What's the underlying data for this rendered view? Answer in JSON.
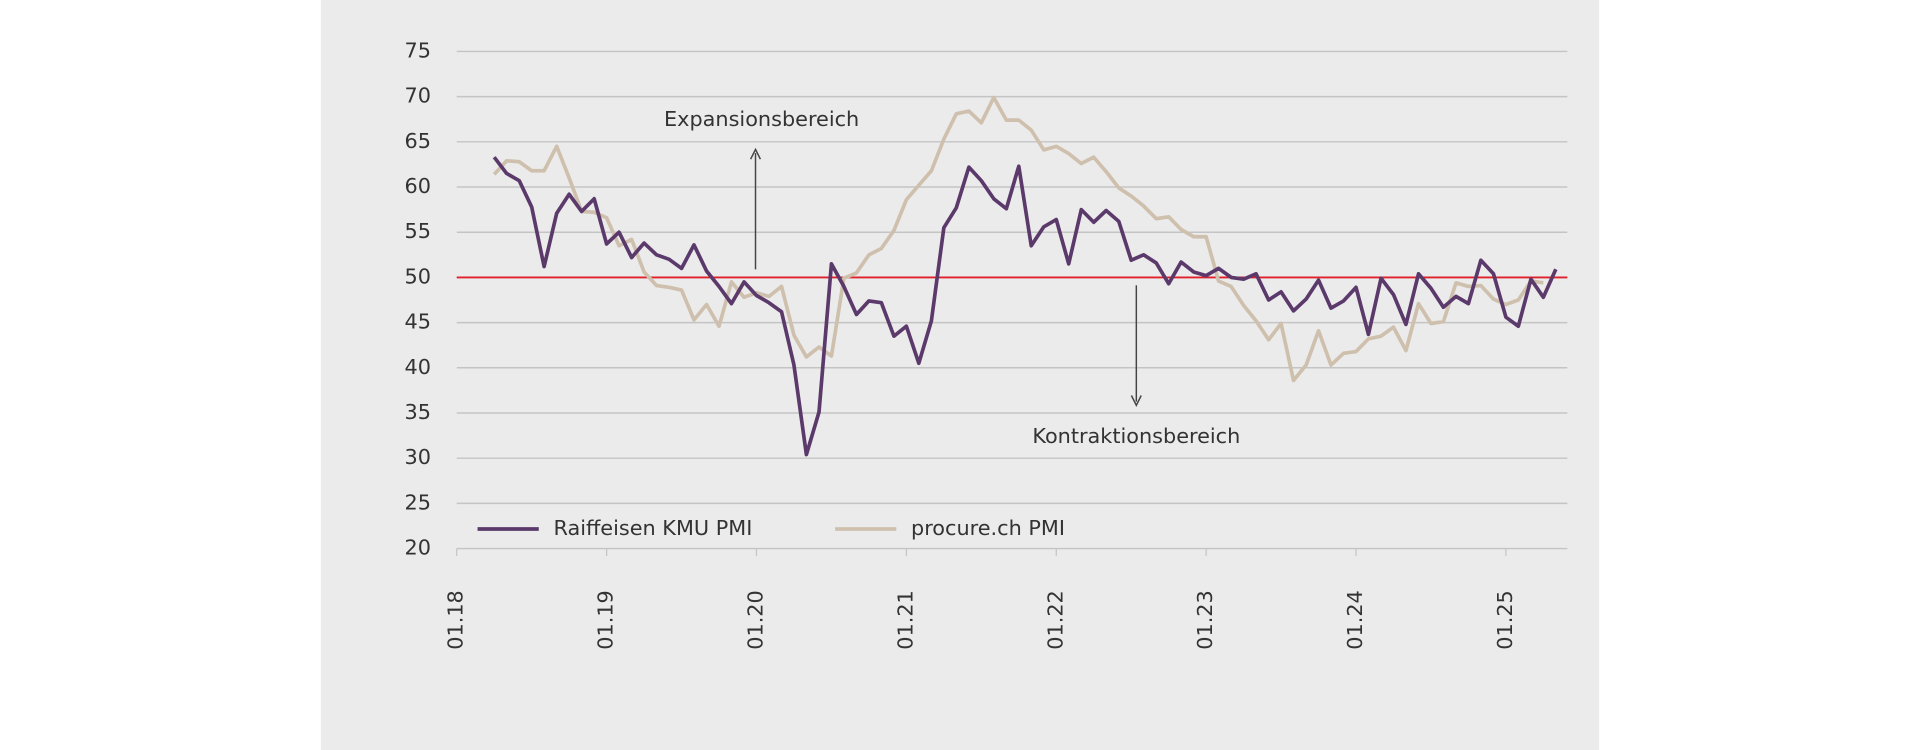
{
  "chart_data": {
    "type": "line",
    "x": [
      2018.25,
      2018.333,
      2018.417,
      2018.5,
      2018.583,
      2018.667,
      2018.75,
      2018.833,
      2018.917,
      2019.0,
      2019.083,
      2019.167,
      2019.25,
      2019.333,
      2019.417,
      2019.5,
      2019.583,
      2019.667,
      2019.75,
      2019.833,
      2019.917,
      2020.0,
      2020.083,
      2020.167,
      2020.25,
      2020.333,
      2020.417,
      2020.5,
      2020.583,
      2020.667,
      2020.75,
      2020.833,
      2020.917,
      2021.0,
      2021.083,
      2021.167,
      2021.25,
      2021.333,
      2021.417,
      2021.5,
      2021.583,
      2021.667,
      2021.75,
      2021.833,
      2021.917,
      2022.0,
      2022.083,
      2022.167,
      2022.25,
      2022.333,
      2022.417,
      2022.5,
      2022.583,
      2022.667,
      2022.75,
      2022.833,
      2022.917,
      2023.0,
      2023.083,
      2023.167,
      2023.25,
      2023.333,
      2023.417,
      2023.5,
      2023.583,
      2023.667,
      2023.75,
      2023.833,
      2023.917,
      2024.0,
      2024.083,
      2024.167,
      2024.25,
      2024.333,
      2024.417,
      2024.5,
      2024.583,
      2024.667,
      2024.75,
      2024.833,
      2024.917,
      2025.0,
      2025.083,
      2025.167,
      2025.25,
      2025.333
    ],
    "series": [
      {
        "name": "Raiffeisen KMU PMI",
        "color": "#5b3a6b",
        "values": [
          63.3,
          61.5,
          60.7,
          57.8,
          51.2,
          57.1,
          59.2,
          57.3,
          58.7,
          53.7,
          55.0,
          52.2,
          53.8,
          52.5,
          52.0,
          51.0,
          53.6,
          50.7,
          49.0,
          47.1,
          49.5,
          48.0,
          47.2,
          46.2,
          40.3,
          30.4,
          35.1,
          51.5,
          49.0,
          45.9,
          47.4,
          47.2,
          43.5,
          44.6,
          40.5,
          45.2,
          55.5,
          57.7,
          62.2,
          60.7,
          58.7,
          57.6,
          62.3,
          53.5,
          55.6,
          56.4,
          51.5,
          57.5,
          56.1,
          57.4,
          56.2,
          51.9,
          52.5,
          51.6,
          49.3,
          51.7,
          50.6,
          50.2,
          51.0,
          50.0,
          49.8,
          50.4,
          47.5,
          48.4,
          46.3,
          47.6,
          49.7,
          46.6,
          47.4,
          48.9,
          43.7,
          49.9,
          48.1,
          44.8,
          50.4,
          48.8,
          46.7,
          47.9,
          47.1,
          51.9,
          50.4,
          45.6,
          44.6,
          49.8,
          47.8,
          50.9
        ]
      },
      {
        "name": "procure.ch PMI",
        "color": "#cfc0ae",
        "values": [
          61.4,
          62.9,
          62.8,
          61.8,
          61.8,
          64.5,
          61.0,
          57.3,
          57.2,
          56.6,
          53.5,
          54.2,
          50.6,
          49.1,
          48.9,
          48.6,
          45.3,
          47.0,
          44.6,
          49.5,
          47.8,
          48.3,
          47.9,
          49.0,
          43.6,
          41.2,
          42.3,
          41.3,
          49.9,
          50.5,
          52.5,
          53.2,
          55.2,
          58.6,
          60.2,
          61.8,
          65.3,
          68.1,
          68.4,
          67.1,
          69.9,
          67.4,
          67.4,
          66.3,
          64.1,
          64.5,
          63.7,
          62.6,
          63.3,
          61.7,
          59.9,
          59.0,
          57.9,
          56.5,
          56.7,
          55.3,
          54.5,
          54.5,
          49.6,
          49.0,
          46.9,
          45.2,
          43.1,
          44.9,
          38.6,
          40.3,
          44.1,
          40.3,
          41.6,
          41.8,
          43.2,
          43.5,
          44.5,
          41.9,
          47.1,
          44.9,
          45.1,
          49.4,
          49.0,
          49.1,
          47.6,
          47.0,
          47.5,
          49.6,
          49.4,
          null
        ]
      }
    ],
    "xlim": [
      2018,
      2025.41
    ],
    "xticks": [
      {
        "value": 2018,
        "label": "01.18"
      },
      {
        "value": 2019,
        "label": "01.19"
      },
      {
        "value": 2020,
        "label": "01.20"
      },
      {
        "value": 2021,
        "label": "01.21"
      },
      {
        "value": 2022,
        "label": "01.22"
      },
      {
        "value": 2023,
        "label": "01.23"
      },
      {
        "value": 2024,
        "label": "01.24"
      },
      {
        "value": 2025,
        "label": "01.25"
      }
    ],
    "ylim": [
      20,
      75
    ],
    "yticks": [
      20,
      25,
      30,
      35,
      40,
      45,
      50,
      55,
      60,
      65,
      70,
      75
    ],
    "grid": true,
    "reference_line": {
      "value": 50,
      "color": "#e0202a"
    },
    "annotations": [
      "Expansionsbereich",
      "Kontraktionsbereich"
    ],
    "legend": "bottom-left"
  }
}
